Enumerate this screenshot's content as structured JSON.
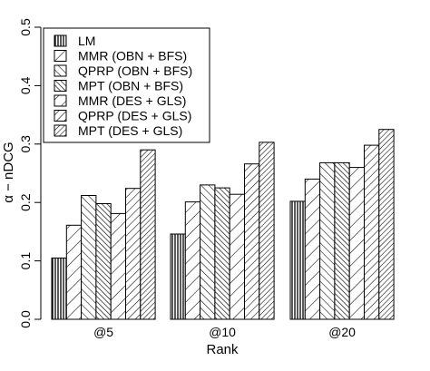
{
  "chart_data": {
    "type": "bar",
    "title": "",
    "xlabel": "Rank",
    "ylabel": "α − nDCG",
    "ylim": [
      0,
      0.5
    ],
    "yticks": [
      "0.0",
      "0.1",
      "0.2",
      "0.3",
      "0.4",
      "0.5"
    ],
    "grid": false,
    "legend_position": "top-left",
    "categories": [
      "@5",
      "@10",
      "@20"
    ],
    "series": [
      {
        "name": "LM",
        "pattern": "vertical-dense",
        "values": [
          0.105,
          0.146,
          0.202
        ]
      },
      {
        "name": "MMR (OBN + BFS)",
        "pattern": "diag-up-sparse",
        "values": [
          0.161,
          0.201,
          0.24
        ]
      },
      {
        "name": "QPRP (OBN + BFS)",
        "pattern": "diag-down",
        "values": [
          0.212,
          0.23,
          0.268
        ]
      },
      {
        "name": "MPT (OBN + BFS)",
        "pattern": "diag-down-dense",
        "values": [
          0.198,
          0.225,
          0.268
        ]
      },
      {
        "name": "MMR (DES + GLS)",
        "pattern": "diag-up-sparse",
        "values": [
          0.181,
          0.214,
          0.26
        ]
      },
      {
        "name": "QPRP (DES + GLS)",
        "pattern": "diag-up",
        "values": [
          0.224,
          0.266,
          0.298
        ]
      },
      {
        "name": "MPT (DES + GLS)",
        "pattern": "diag-up-dense",
        "values": [
          0.29,
          0.303,
          0.325
        ]
      }
    ]
  }
}
